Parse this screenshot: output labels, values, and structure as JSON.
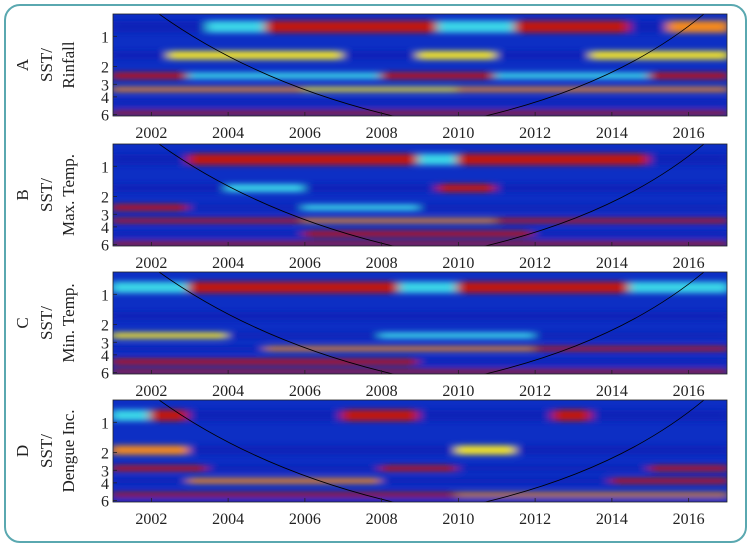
{
  "chart_data": [
    {
      "type": "heatmap",
      "panel_label": "A",
      "ylabel_lines": [
        "SST/",
        "Rinfall"
      ],
      "xlim": [
        2001,
        2017
      ],
      "ylim": [
        0.6,
        6.2
      ],
      "x_ticks": [
        2002,
        2004,
        2006,
        2008,
        2010,
        2012,
        2014,
        2016
      ],
      "y_ticks": [
        1,
        2,
        3,
        4,
        6
      ],
      "bands": [
        {
          "y": 0.7,
          "h": 0.22,
          "segments": [
            [
              2001,
              2003.5,
              "blue"
            ],
            [
              2003.5,
              2005,
              "cyan"
            ],
            [
              2005,
              2009.5,
              "red"
            ],
            [
              2009.5,
              2011.5,
              "cyan"
            ],
            [
              2011.5,
              2014.5,
              "red"
            ],
            [
              2014.5,
              2015.5,
              "blue"
            ],
            [
              2015.5,
              2017,
              "orange"
            ]
          ]
        },
        {
          "y": 1.4,
          "h": 0.3,
          "segments": [
            [
              2001,
              2002.5,
              "blue"
            ],
            [
              2002.5,
              2007,
              "yellow"
            ],
            [
              2007,
              2009,
              "blue"
            ],
            [
              2009,
              2011,
              "yellow"
            ],
            [
              2011,
              2013.5,
              "blue"
            ],
            [
              2013.5,
              2017,
              "yellow"
            ]
          ]
        },
        {
          "y": 2.3,
          "h": 0.35,
          "segments": [
            [
              2001,
              2003,
              "red"
            ],
            [
              2003,
              2008,
              "cyan"
            ],
            [
              2008,
              2011,
              "red"
            ],
            [
              2011,
              2015,
              "cyan"
            ],
            [
              2015,
              2017,
              "red"
            ]
          ]
        },
        {
          "y": 3.2,
          "h": 0.35,
          "segments": [
            [
              2001,
              2006,
              "orange"
            ],
            [
              2006,
              2010,
              "yellow"
            ],
            [
              2010,
              2017,
              "orange"
            ]
          ]
        },
        {
          "y": 4.3,
          "h": 0.6,
          "segments": [
            [
              2001,
              2017,
              "blue"
            ]
          ]
        },
        {
          "y": 5.5,
          "h": 0.5,
          "segments": [
            [
              2001,
              2017,
              "red"
            ]
          ]
        }
      ]
    },
    {
      "type": "heatmap",
      "panel_label": "B",
      "ylabel_lines": [
        "SST/",
        "Max. Temp."
      ],
      "xlim": [
        2001,
        2017
      ],
      "ylim": [
        0.6,
        6.2
      ],
      "x_ticks": [
        2002,
        2004,
        2006,
        2008,
        2010,
        2012,
        2014,
        2016
      ],
      "y_ticks": [
        1,
        2,
        3,
        4,
        6
      ],
      "bands": [
        {
          "y": 0.75,
          "h": 0.22,
          "segments": [
            [
              2001,
              2003,
              "blue"
            ],
            [
              2003,
              2009,
              "red"
            ],
            [
              2009,
              2010,
              "cyan"
            ],
            [
              2010,
              2015,
              "red"
            ],
            [
              2015,
              2017,
              "blue"
            ]
          ]
        },
        {
          "y": 1.5,
          "h": 0.3,
          "segments": [
            [
              2001,
              2004,
              "blue"
            ],
            [
              2004,
              2006,
              "cyan"
            ],
            [
              2006,
              2009.5,
              "blue"
            ],
            [
              2009.5,
              2011,
              "red"
            ],
            [
              2011,
              2017,
              "blue"
            ]
          ]
        },
        {
          "y": 2.4,
          "h": 0.35,
          "segments": [
            [
              2001,
              2003,
              "red"
            ],
            [
              2003,
              2006,
              "blue"
            ],
            [
              2006,
              2009,
              "cyan"
            ],
            [
              2009,
              2017,
              "blue"
            ]
          ]
        },
        {
          "y": 3.3,
          "h": 0.35,
          "segments": [
            [
              2001,
              2006,
              "red"
            ],
            [
              2006,
              2011,
              "orange"
            ],
            [
              2011,
              2017,
              "red"
            ]
          ]
        },
        {
          "y": 4.4,
          "h": 0.6,
          "segments": [
            [
              2001,
              2006,
              "blue"
            ],
            [
              2006,
              2012,
              "red"
            ],
            [
              2012,
              2017,
              "blue"
            ]
          ]
        },
        {
          "y": 5.6,
          "h": 0.5,
          "segments": [
            [
              2001,
              2017,
              "red"
            ]
          ]
        }
      ]
    },
    {
      "type": "heatmap",
      "panel_label": "C",
      "ylabel_lines": [
        "SST/",
        "Min. Temp."
      ],
      "xlim": [
        2001,
        2017
      ],
      "ylim": [
        0.6,
        6.2
      ],
      "x_ticks": [
        2002,
        2004,
        2006,
        2008,
        2010,
        2012,
        2014,
        2016
      ],
      "y_ticks": [
        1,
        2,
        3,
        4,
        6
      ],
      "bands": [
        {
          "y": 0.75,
          "h": 0.22,
          "segments": [
            [
              2001,
              2003,
              "cyan"
            ],
            [
              2003,
              2008.5,
              "red"
            ],
            [
              2008.5,
              2010,
              "cyan"
            ],
            [
              2010,
              2014.5,
              "red"
            ],
            [
              2014.5,
              2017,
              "cyan"
            ]
          ]
        },
        {
          "y": 1.5,
          "h": 0.3,
          "segments": [
            [
              2001,
              2017,
              "blue"
            ]
          ]
        },
        {
          "y": 2.4,
          "h": 0.35,
          "segments": [
            [
              2001,
              2004,
              "yellow"
            ],
            [
              2004,
              2008,
              "blue"
            ],
            [
              2008,
              2012,
              "cyan"
            ],
            [
              2012,
              2017,
              "blue"
            ]
          ]
        },
        {
          "y": 3.3,
          "h": 0.35,
          "segments": [
            [
              2001,
              2005,
              "blue"
            ],
            [
              2005,
              2012,
              "orange"
            ],
            [
              2012,
              2017,
              "red"
            ]
          ]
        },
        {
          "y": 4.4,
          "h": 0.6,
          "segments": [
            [
              2001,
              2009,
              "red"
            ],
            [
              2009,
              2017,
              "blue"
            ]
          ]
        },
        {
          "y": 5.6,
          "h": 0.5,
          "segments": [
            [
              2001,
              2017,
              "red"
            ]
          ]
        }
      ]
    },
    {
      "type": "heatmap",
      "panel_label": "D",
      "ylabel_lines": [
        "SST/",
        "Dengue Inc."
      ],
      "xlim": [
        2001,
        2017
      ],
      "ylim": [
        0.6,
        6.2
      ],
      "x_ticks": [
        2002,
        2004,
        2006,
        2008,
        2010,
        2012,
        2014,
        2016
      ],
      "y_ticks": [
        1,
        2,
        3,
        4,
        6
      ],
      "bands": [
        {
          "y": 0.75,
          "h": 0.22,
          "segments": [
            [
              2001,
              2002,
              "cyan"
            ],
            [
              2002,
              2003,
              "red"
            ],
            [
              2003,
              2007,
              "blue"
            ],
            [
              2007,
              2009,
              "red"
            ],
            [
              2009,
              2012.5,
              "blue"
            ],
            [
              2012.5,
              2013.5,
              "red"
            ],
            [
              2013.5,
              2017,
              "blue"
            ]
          ]
        },
        {
          "y": 1.7,
          "h": 0.4,
          "segments": [
            [
              2001,
              2003,
              "orange"
            ],
            [
              2003,
              2010,
              "blue"
            ],
            [
              2010,
              2011.5,
              "yellow"
            ],
            [
              2011.5,
              2017,
              "blue"
            ]
          ]
        },
        {
          "y": 2.7,
          "h": 0.35,
          "segments": [
            [
              2001,
              2003.5,
              "red"
            ],
            [
              2003.5,
              2008,
              "blue"
            ],
            [
              2008,
              2010,
              "red"
            ],
            [
              2010,
              2015,
              "blue"
            ],
            [
              2015,
              2017,
              "red"
            ]
          ]
        },
        {
          "y": 3.6,
          "h": 0.45,
          "segments": [
            [
              2001,
              2003,
              "blue"
            ],
            [
              2003,
              2008,
              "orange"
            ],
            [
              2008,
              2014,
              "blue"
            ],
            [
              2014,
              2017,
              "red"
            ]
          ]
        },
        {
          "y": 5.0,
          "h": 0.5,
          "segments": [
            [
              2001,
              2010,
              "red"
            ],
            [
              2010,
              2017,
              "orange"
            ]
          ]
        },
        {
          "y": 5.9,
          "h": 0.3,
          "segments": [
            [
              2001,
              2017,
              "blue"
            ]
          ]
        }
      ]
    }
  ],
  "palette": {
    "blue": "#0a23b8",
    "cyan": "#3ad6e8",
    "yellow": "#f2e32a",
    "orange": "#f58a1c",
    "red": "#c2170e",
    "background": "#0d2fc4",
    "frame": "#5aa8b0"
  }
}
